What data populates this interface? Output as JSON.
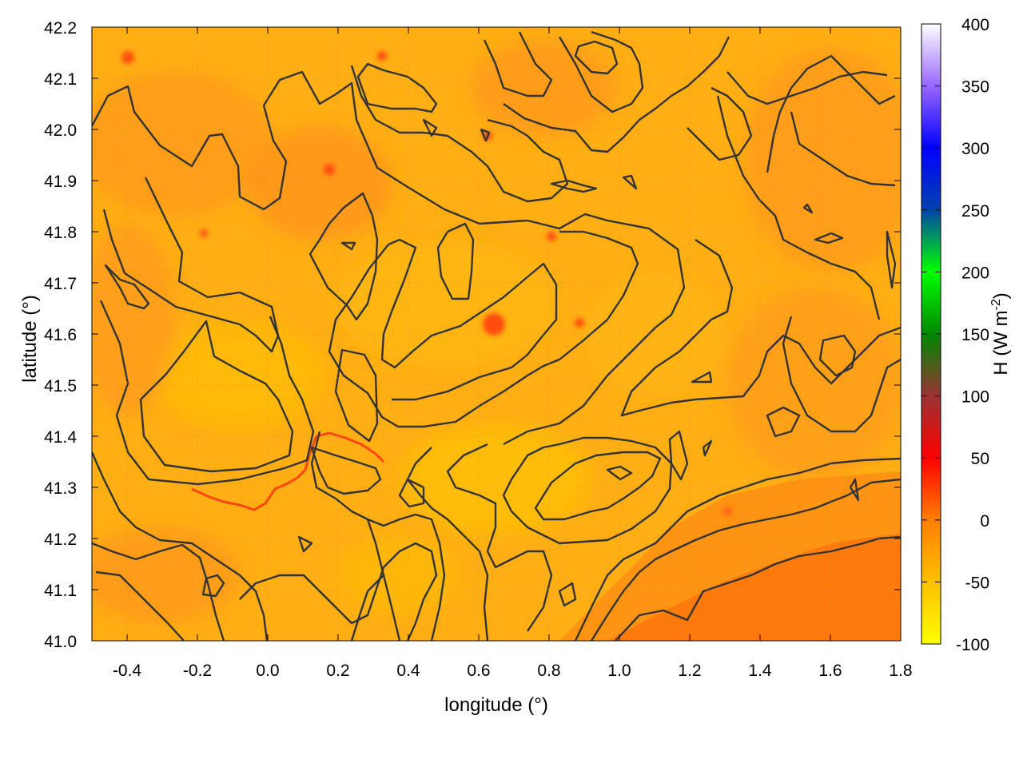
{
  "chart_data": {
    "type": "heatmap",
    "title": "",
    "xlabel": "longitude (°)",
    "ylabel": "latitude (°)",
    "xlim": [
      -0.5,
      1.8
    ],
    "ylim": [
      41.0,
      42.2
    ],
    "x_ticks": [
      -0.4,
      -0.2,
      0.0,
      0.2,
      0.4,
      0.6,
      0.8,
      1.0,
      1.2,
      1.4,
      1.6,
      1.8
    ],
    "x_tick_labels": [
      "-0.4",
      "-0.2",
      "0.0",
      "0.2",
      "0.4",
      "0.6",
      "0.8",
      "1.0",
      "1.2",
      "1.4",
      "1.6",
      "1.8"
    ],
    "y_ticks": [
      41.0,
      41.1,
      41.2,
      41.3,
      41.4,
      41.5,
      41.6,
      41.7,
      41.8,
      41.9,
      42.0,
      42.1,
      42.2
    ],
    "y_tick_labels": [
      "41.0",
      "41.1",
      "41.2",
      "41.3",
      "41.4",
      "41.5",
      "41.6",
      "41.7",
      "41.8",
      "41.9",
      "42.0",
      "42.1",
      "42.2"
    ],
    "grid": true,
    "colorbar": {
      "label": "H (W m",
      "label_superscript": "-2",
      "label_close": ")",
      "range": [
        -100,
        400
      ],
      "ticks": [
        -100,
        -50,
        0,
        50,
        100,
        150,
        200,
        250,
        300,
        350,
        400
      ],
      "tick_labels": [
        "-100",
        "-50",
        "0",
        "50",
        "100",
        "150",
        "200",
        "250",
        "300",
        "350",
        "400"
      ],
      "colors": [
        "#ffff00",
        "#ff7f00",
        "#ff0000",
        "#993333",
        "#00ff00",
        "#0000ff",
        "#ffffff"
      ]
    },
    "field_summary": {
      "background_value": -30,
      "sea_region_value": -5,
      "hotspot_value": 40
    },
    "contours_present": true
  }
}
